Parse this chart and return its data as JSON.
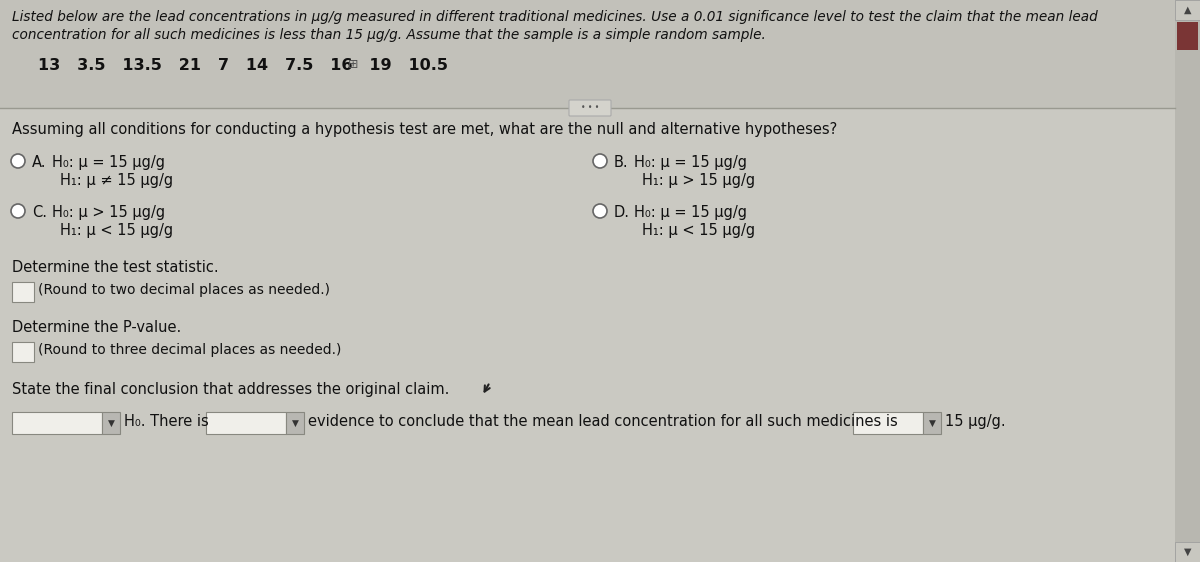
{
  "bg_color": "#cac9c2",
  "top_section_bg": "#c2c1ba",
  "title_text1": "Listed below are the lead concentrations in μg/g measured in different traditional medicines. Use a 0.01 significance level to test the claim that the mean lead",
  "title_text2": "concentration for all such medicines is less than 15 μg/g. Assume that the sample is a simple random sample.",
  "data_row": "13   3.5   13.5   21   7   14   7.5   16   19   10.5",
  "question1": "Assuming all conditions for conducting a hypothesis test are met, what are the null and alternative hypotheses?",
  "optA_label": "A.",
  "optA_line1": "H₀: μ = 15 μg/g",
  "optA_line2": "H₁: μ ≠ 15 μg/g",
  "optB_label": "B.",
  "optB_line1": "H₀: μ = 15 μg/g",
  "optB_line2": "H₁: μ > 15 μg/g",
  "optC_label": "C.",
  "optC_line1": "H₀: μ > 15 μg/g",
  "optC_line2": "H₁: μ < 15 μg/g",
  "optD_label": "D.",
  "optD_line1": "H₀: μ = 15 μg/g",
  "optD_line2": "H₁: μ < 15 μg/g",
  "det_stat": "Determine the test statistic.",
  "round2": "(Round to two decimal places as needed.)",
  "det_pval": "Determine the P-value.",
  "round3": "(Round to three decimal places as needed.)",
  "final_state": "State the final conclusion that addresses the original claim.",
  "bottom_left_text": "H₀. There is",
  "bottom_mid_text": "evidence to conclude that the mean lead concentration for all such medicines is",
  "bottom_right_text": "15 μg/g.",
  "scrollbar_track": "#b8b7b0",
  "scrollbar_thumb": "#7a3535",
  "scrollbar_btn": "#c8c7c0",
  "text_color": "#111111",
  "input_fill": "#f0efea",
  "input_border": "#888880",
  "dropdown_btn_fill": "#b8b7b2",
  "line_color": "#999990",
  "collapse_btn_fill": "#d4d3cc",
  "collapse_btn_border": "#aaa"
}
